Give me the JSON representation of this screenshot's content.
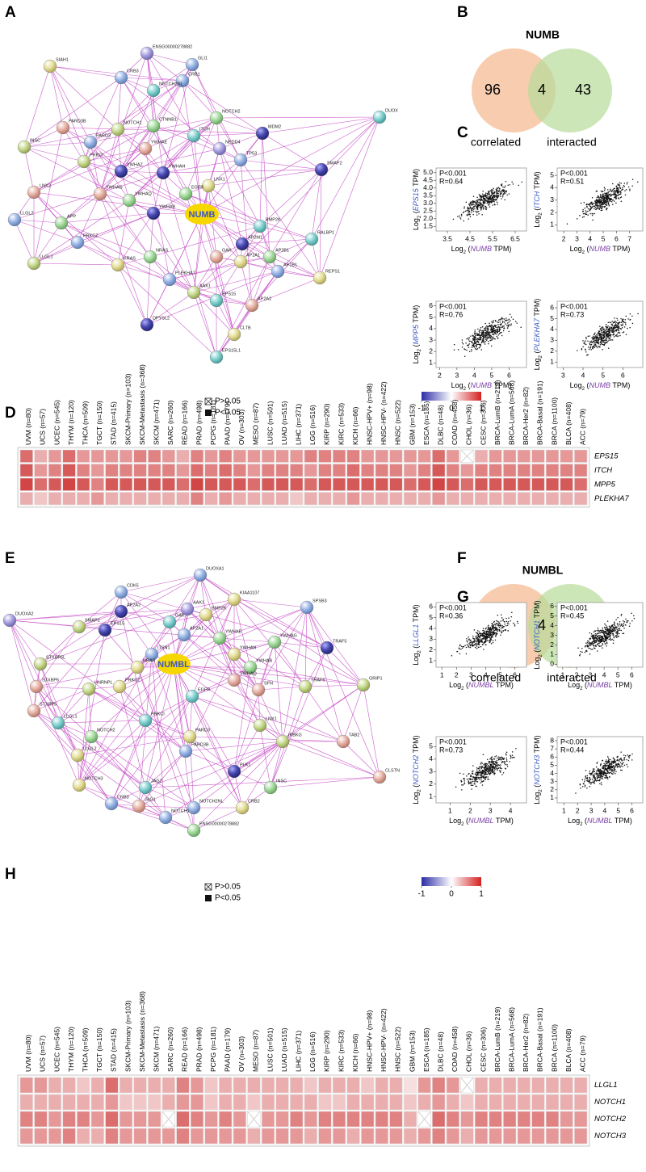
{
  "axis_label": {
    "log": "Log",
    "base": "2",
    "open": " (",
    "unit": " TPM)"
  },
  "cancer_types": [
    "UVM (n=80)",
    "UCS (n=57)",
    "UCEC (n=545)",
    "THYM (n=120)",
    "THCA (n=509)",
    "TGCT (n=150)",
    "STAD (n=415)",
    "SKCM-Primary (n=103)",
    "SKCM-Metastasis (n=368)",
    "SKCM (n=471)",
    "SARC (n=260)",
    "READ (n=166)",
    "PRAD (n=498)",
    "PCPG (n=181)",
    "PAAD (n=179)",
    "OV (n=303)",
    "MESO (n=87)",
    "LUSC (n=501)",
    "LUAD (n=515)",
    "LIHC (n=371)",
    "LGG (n=516)",
    "KIRP (n=290)",
    "KIRC (n=533)",
    "KICH (n=66)",
    "HNSC-HPV+ (n=98)",
    "HNSC-HPV- (n=422)",
    "HNSC (n=522)",
    "GBM (n=153)",
    "ESCA (n=185)",
    "DLBC (n=48)",
    "COAD (n=458)",
    "CHOL (n=36)",
    "CESC (n=306)",
    "BRCA-LumB (n=219)",
    "BRCA-LumA (n=568)",
    "BRCA-Her2 (n=82)",
    "BRCA-Basal (n=191)",
    "BRCA (n=1100)",
    "BLCA (n=408)",
    "ACC (n=79)"
  ],
  "panels": {
    "A": {
      "label": "A",
      "hub": "NUMB",
      "nodes": [
        "SIAH1",
        "ENSG00000278882",
        "GLI1",
        "CRB3",
        "CRB1",
        "NOTCH2NL",
        "NOTCH2",
        "DUOX",
        "MDM2",
        "INSC",
        "PARD3B",
        "NOTCH1",
        "CTNNB1",
        "ITCH",
        "NEDD4",
        "TP53",
        "SMAP2",
        "PARD3",
        "PRKCI",
        "YWHAE",
        "YWHAZ",
        "YWHAH",
        "LNX1",
        "LNX2",
        "YWHAG",
        "EGFR",
        "LLGL2",
        "APP",
        "YWHAQ",
        "YWHAB",
        "BMP2K",
        "RALBP1",
        "PRKCZ",
        "AP2M1",
        "AP2B1",
        "LLGL1",
        "KRAS",
        "NRAS",
        "GAK",
        "AP2A1",
        "AP1B1",
        "REPS1",
        "PLEKHA7",
        "AAK1",
        "EPS15",
        "AP2A2",
        "DPYSL2",
        "CLTB",
        "EPS15L1"
      ]
    },
    "B": {
      "label": "B",
      "title": "NUMB",
      "left": 96,
      "overlap": 4,
      "right": 43,
      "left_label": "correlated",
      "right_label": "interacted"
    },
    "C": {
      "label": "C",
      "x_gene": "NUMB",
      "plots": [
        {
          "gene": "EPS15",
          "p": "P<0.001",
          "r": "R=0.64",
          "xlim": [
            3,
            7
          ],
          "xticks": [
            3.5,
            4.5,
            5.5,
            6.5
          ],
          "ylim": [
            1.2,
            5.3
          ],
          "yticks": [
            1.5,
            {
              "value": 2,
              "label": "2.0"
            },
            2.5,
            {
              "value": 3,
              "label": "3.0"
            },
            3.5,
            {
              "value": 4,
              "label": "4.0"
            },
            4.5,
            {
              "value": 5,
              "label": "5.0"
            }
          ]
        },
        {
          "gene": "ITCH",
          "p": "P<0.001",
          "r": "R=0.51",
          "xlim": [
            1.5,
            8
          ],
          "xticks": [
            2,
            3,
            4,
            5,
            6,
            7
          ],
          "ylim": [
            0.5,
            5.6
          ],
          "yticks": [
            1,
            2,
            3,
            4,
            5
          ]
        },
        {
          "gene": "MPP5",
          "p": "P<0.001",
          "r": "R=0.76",
          "xlim": [
            1.8,
            7
          ],
          "xticks": [
            2,
            3,
            4,
            5,
            6
          ],
          "ylim": [
            0.6,
            6.4
          ],
          "yticks": [
            1,
            2,
            3,
            4,
            5,
            6
          ]
        },
        {
          "gene": "PLEKHA7",
          "p": "P<0.001",
          "r": "R=0.73",
          "xlim": [
            2.7,
            7
          ],
          "xticks": [
            3,
            4,
            5,
            6
          ],
          "ylim": [
            0.5,
            6.6
          ],
          "yticks": [
            1,
            2,
            3,
            4,
            5,
            6
          ]
        }
      ]
    },
    "D": {
      "label": "D",
      "legend": {
        "ns": "P>0.05",
        "sig": "P<0.05"
      },
      "colorbar": {
        "lim": [
          -1,
          1
        ],
        "ticks": [
          -1,
          0,
          1
        ]
      },
      "rows": [
        "EPS15",
        "ITCH",
        "MPP5",
        "PLEKHA7"
      ],
      "values": [
        [
          0.6,
          0.3,
          0.4,
          0.6,
          0.4,
          0.4,
          0.4,
          0.4,
          0.5,
          0.5,
          0.4,
          0.3,
          0.5,
          0.4,
          0.5,
          0.4,
          0.4,
          0.4,
          0.4,
          0.4,
          0.5,
          0.5,
          0.5,
          0.5,
          0.4,
          0.4,
          0.4,
          0.4,
          0.4,
          0.6,
          0.4,
          0.1,
          0.3,
          0.4,
          0.4,
          0.4,
          0.4,
          0.4,
          0.4,
          0.4
        ],
        [
          0.7,
          0.4,
          0.5,
          0.7,
          0.5,
          0.4,
          0.5,
          0.5,
          0.5,
          0.5,
          0.5,
          0.4,
          0.6,
          0.5,
          0.6,
          0.5,
          0.4,
          0.5,
          0.5,
          0.5,
          0.4,
          0.5,
          0.5,
          0.6,
          0.5,
          0.5,
          0.5,
          0.4,
          0.5,
          0.7,
          0.5,
          0.4,
          0.5,
          0.5,
          0.5,
          0.5,
          0.5,
          0.5,
          0.5,
          0.5
        ],
        [
          0.8,
          0.6,
          0.7,
          0.8,
          0.7,
          0.5,
          0.7,
          0.7,
          0.7,
          0.7,
          0.7,
          0.6,
          0.8,
          0.7,
          0.7,
          0.7,
          0.6,
          0.7,
          0.7,
          0.7,
          0.6,
          0.7,
          0.7,
          0.7,
          0.7,
          0.7,
          0.7,
          0.6,
          0.7,
          0.8,
          0.7,
          0.6,
          0.7,
          0.7,
          0.7,
          0.7,
          0.7,
          0.7,
          0.7,
          0.6
        ],
        [
          0.3,
          0.2,
          0.3,
          0.3,
          0.3,
          0.4,
          0.3,
          0.3,
          0.3,
          0.3,
          0.3,
          0.3,
          0.5,
          0.3,
          0.4,
          0.3,
          0.3,
          0.3,
          0.3,
          0.2,
          0.3,
          0.3,
          0.3,
          0.4,
          0.3,
          0.3,
          0.3,
          0.3,
          0.3,
          0.4,
          0.3,
          0.3,
          0.3,
          0.3,
          0.3,
          0.3,
          0.3,
          0.3,
          0.3,
          0.3
        ]
      ],
      "crossed": [
        [
          0,
          31
        ]
      ]
    },
    "E": {
      "label": "E",
      "hub": "NUMBL",
      "nodes": [
        "DUOXA1",
        "CDK5",
        "KIAA1107",
        "DUOXA2",
        "AP2A2",
        "AAK1",
        "BMP2K",
        "SPSB3",
        "GAK",
        "SMAP2",
        "EPS15",
        "AP2A1",
        "YWHAE",
        "YWHAG",
        "TRAF5",
        "ITSN1",
        "YWHAH",
        "STXBP5L",
        "NRAS",
        "YWHAB",
        "YWHAQ",
        "TRAF6",
        "GRIP1",
        "STXBP6",
        "HNRNPL",
        "PRKCZ",
        "SFN",
        "EGFR",
        "STXBP5",
        "LLGL1",
        "PRKCI",
        "LNX1",
        "NOTCH2",
        "PARD3",
        "IKBKG",
        "TAB2",
        "LLGL2",
        "PARD3B",
        "PLK1",
        "CLSTN",
        "NOTCH3",
        "INSC",
        "JAG2",
        "CRB3",
        "JAG1",
        "NOTCH2NL",
        "CRB2",
        "NOTCH1",
        "ENSG00000278882"
      ]
    },
    "F": {
      "label": "F",
      "title": "NUMBL",
      "left": 96,
      "overlap": 4,
      "right": 39,
      "left_label": "correlated",
      "right_label": "interacted"
    },
    "G": {
      "label": "G",
      "x_gene": "NUMBL",
      "plots": [
        {
          "gene": "LLGL1",
          "p": "P<0.001",
          "r": "R=0.36",
          "xlim": [
            0.6,
            6.8
          ],
          "xticks": [
            1,
            2,
            3,
            4,
            5,
            6
          ],
          "ylim": [
            0.4,
            6.4
          ],
          "yticks": [
            1,
            2,
            3,
            4,
            5,
            6
          ]
        },
        {
          "gene": "NOTCH1",
          "p": "P<0.001",
          "r": "R=0.45",
          "xlim": [
            0.6,
            6.8
          ],
          "xticks": [
            1,
            2,
            3,
            4,
            5,
            6
          ],
          "ylim": [
            -0.3,
            6.4
          ],
          "yticks": [
            0,
            1,
            2,
            3,
            4,
            5,
            6
          ]
        },
        {
          "gene": "NOTCH2",
          "p": "P<0.001",
          "r": "R=0.73",
          "xlim": [
            0.3,
            4.8
          ],
          "xticks": [
            1,
            2,
            3,
            4
          ],
          "ylim": [
            0.5,
            5.8
          ],
          "yticks": [
            1,
            2,
            3,
            4,
            5
          ]
        },
        {
          "gene": "NOTCH3",
          "p": "P<0.001",
          "r": "R=0.44",
          "xlim": [
            0.5,
            6.8
          ],
          "xticks": [
            1,
            2,
            3,
            4,
            5,
            6
          ],
          "ylim": [
            0.4,
            8.5
          ],
          "yticks": [
            1,
            2,
            3,
            4,
            5,
            6,
            7,
            8
          ]
        }
      ]
    },
    "H": {
      "label": "H",
      "legend": {
        "ns": "P>0.05",
        "sig": "P<0.05"
      },
      "colorbar": {
        "lim": [
          -1,
          1
        ],
        "ticks": [
          -1,
          0,
          1
        ]
      },
      "rows": [
        "LLGL1",
        "NOTCH1",
        "NOTCH2",
        "NOTCH3"
      ],
      "values": [
        [
          0.4,
          0.4,
          0.3,
          0.3,
          0.2,
          0.3,
          0.6,
          0.3,
          0.3,
          0.3,
          0.3,
          0.5,
          0.4,
          0.2,
          0.3,
          0.3,
          0.3,
          0.3,
          0.3,
          0.3,
          0.2,
          0.3,
          0.3,
          0.3,
          0.2,
          0.3,
          0.3,
          0.1,
          0.4,
          0.5,
          0.4,
          0.1,
          0.3,
          0.3,
          0.3,
          0.3,
          0.3,
          0.3,
          0.3,
          0.3
        ],
        [
          0.3,
          0.3,
          0.3,
          0.3,
          0.3,
          0.3,
          0.4,
          0.2,
          0.2,
          0.2,
          0.3,
          0.4,
          0.4,
          0.2,
          0.3,
          0.3,
          0.2,
          0.3,
          0.3,
          0.3,
          0.3,
          0.2,
          0.2,
          0.3,
          0.3,
          0.3,
          0.3,
          0.2,
          0.3,
          0.4,
          0.3,
          0.2,
          0.3,
          0.3,
          0.3,
          0.3,
          0.3,
          0.3,
          0.3,
          0.3
        ],
        [
          0.5,
          0.5,
          0.4,
          0.5,
          0.5,
          0.4,
          0.6,
          0.4,
          0.4,
          0.4,
          0.1,
          0.6,
          0.5,
          0.4,
          0.5,
          0.4,
          0.1,
          0.4,
          0.4,
          0.5,
          0.4,
          0.5,
          0.5,
          0.5,
          0.5,
          0.5,
          0.5,
          0.3,
          0.1,
          0.6,
          0.5,
          0.4,
          0.5,
          0.5,
          0.5,
          0.5,
          0.5,
          0.5,
          0.4,
          0.4
        ],
        [
          0.4,
          0.4,
          0.4,
          0.5,
          0.3,
          0.3,
          0.5,
          0.4,
          0.4,
          0.4,
          0.4,
          0.5,
          0.4,
          0.4,
          0.4,
          0.4,
          0.3,
          0.4,
          0.4,
          0.4,
          0.3,
          0.4,
          0.4,
          0.3,
          0.4,
          0.4,
          0.4,
          0.3,
          0.4,
          0.5,
          0.4,
          0.3,
          0.4,
          0.4,
          0.4,
          0.4,
          0.4,
          0.4,
          0.4,
          0.4
        ]
      ],
      "crossed": [
        [
          0,
          31
        ],
        [
          2,
          10
        ],
        [
          2,
          16
        ],
        [
          2,
          28
        ]
      ]
    }
  }
}
